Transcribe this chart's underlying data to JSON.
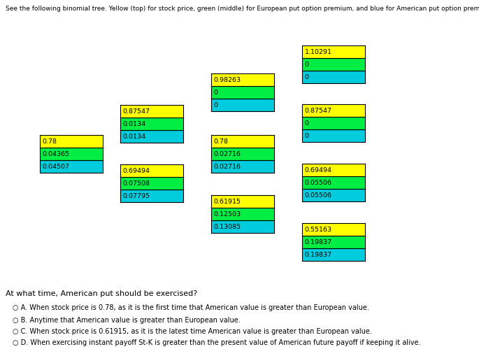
{
  "title": "See the following binomial tree. Yellow (top) for stock price, green (middle) for European put option premium, and blue for American put option premium (bottom).",
  "nodes": [
    {
      "col": 0,
      "row": 0,
      "stock": "0.78",
      "euro": "0.04365",
      "amer": "0.04507"
    },
    {
      "col": 1,
      "row": 0,
      "stock": "0.87547",
      "euro": "0.0134",
      "amer": "0.0134"
    },
    {
      "col": 1,
      "row": 1,
      "stock": "0.69494",
      "euro": "0.07508",
      "amer": "0.07795"
    },
    {
      "col": 2,
      "row": 0,
      "stock": "0.98263",
      "euro": "0",
      "amer": "0"
    },
    {
      "col": 2,
      "row": 1,
      "stock": "0.78",
      "euro": "0.02716",
      "amer": "0.02716"
    },
    {
      "col": 2,
      "row": 2,
      "stock": "0.61915",
      "euro": "0.12503",
      "amer": "0.13085"
    },
    {
      "col": 3,
      "row": 0,
      "stock": "1.10291",
      "euro": "0",
      "amer": "0"
    },
    {
      "col": 3,
      "row": 1,
      "stock": "0.87547",
      "euro": "0",
      "amer": "0"
    },
    {
      "col": 3,
      "row": 2,
      "stock": "0.69494",
      "euro": "0.05506",
      "amer": "0.05506"
    },
    {
      "col": 3,
      "row": 3,
      "stock": "0.55163",
      "euro": "0.19837",
      "amer": "0.19837"
    }
  ],
  "question": "At what time, American put should be exercised?",
  "options": [
    "A. When stock price is 0.78, as it is the first time that American value is greater than European value.",
    "B. Anytime that American value is greater than European value.",
    "C. When stock price is 0.61915, as it is the latest time American value is greater than European value.",
    "D. When exercising instant payoff St-K is greater than the present value of American future payoff if keeping it alive."
  ],
  "yellow": "#ffff00",
  "green": "#00ee44",
  "cyan": "#00ccdd",
  "fig_width": 6.85,
  "fig_height": 5.09,
  "dpi": 100
}
